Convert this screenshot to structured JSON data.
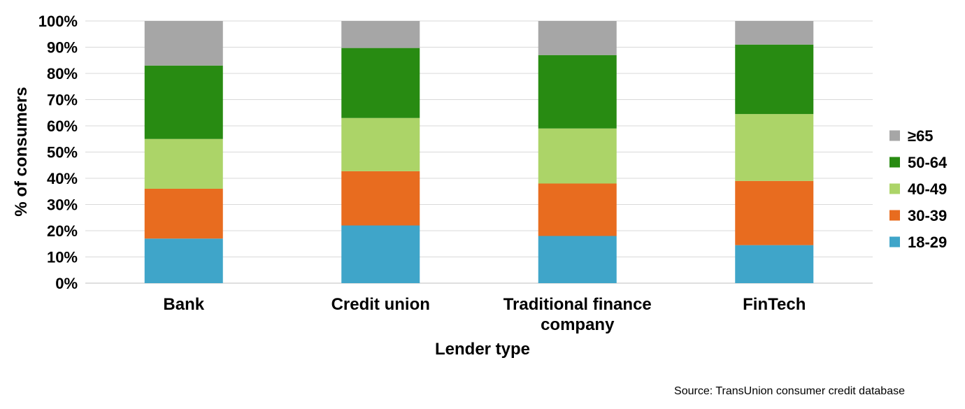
{
  "chart_data": {
    "type": "bar",
    "stacked": true,
    "categories": [
      "Bank",
      "Credit union",
      "Traditional finance company",
      "FinTech"
    ],
    "category_lines": [
      [
        "Bank"
      ],
      [
        "Credit union"
      ],
      [
        "Traditional finance",
        "company"
      ],
      [
        "FinTech"
      ]
    ],
    "series": [
      {
        "name": "18-29",
        "color": "#3fa5c9",
        "values": [
          17,
          22,
          18,
          14.5
        ]
      },
      {
        "name": "30-39",
        "color": "#e86c1f",
        "values": [
          19,
          20.7,
          20,
          24.5
        ]
      },
      {
        "name": "40-49",
        "color": "#acd468",
        "values": [
          19,
          20.3,
          21,
          25.5
        ]
      },
      {
        "name": "50-64",
        "color": "#288b12",
        "values": [
          28,
          26.7,
          28,
          26.5
        ]
      },
      {
        "name": "≥65",
        "color": "#a6a6a6",
        "values": [
          17,
          10.3,
          13,
          9
        ]
      }
    ],
    "xlabel": "Lender type",
    "ylabel": "% of consumers",
    "ylim": [
      0,
      100
    ],
    "yticks": [
      "0%",
      "10%",
      "20%",
      "30%",
      "40%",
      "50%",
      "60%",
      "70%",
      "80%",
      "90%",
      "100%"
    ],
    "grid": true,
    "legend_position": "right",
    "legend_order": [
      "≥65",
      "50-64",
      "40-49",
      "30-39",
      "18-29"
    ]
  },
  "source": "Source: TransUnion consumer credit database"
}
